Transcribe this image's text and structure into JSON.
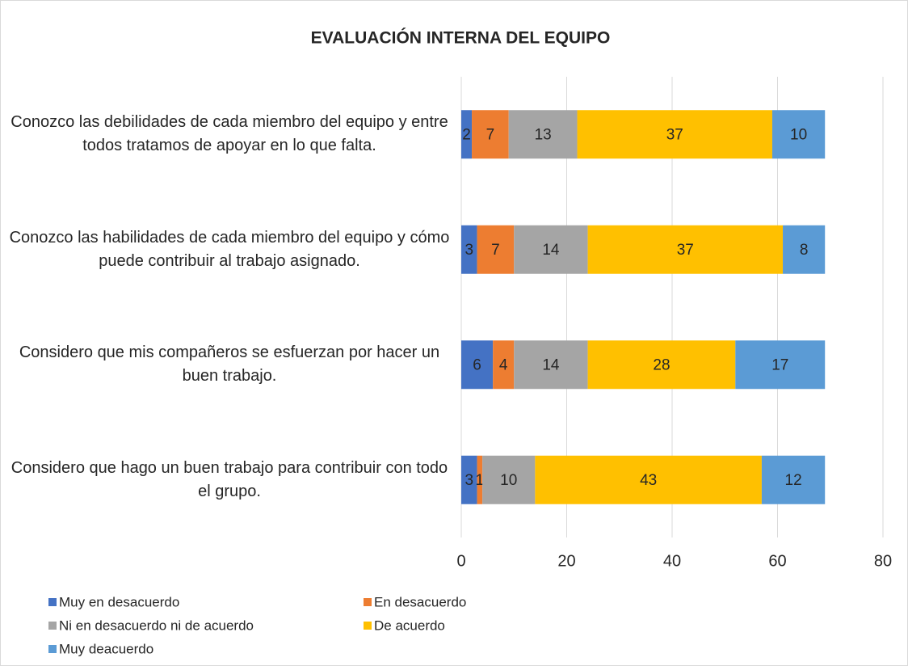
{
  "chart_data": {
    "type": "stacked_barh",
    "title": "EVALUACIÓN INTERNA DEL EQUIPO",
    "categories": [
      "Conozco las debilidades de cada miembro del equipo y entre todos tratamos de apoyar en lo que falta.",
      "Conozco las habilidades de cada miembro del equipo y cómo puede contribuir al trabajo asignado.",
      "Considero que mis compañeros se esfuerzan por hacer un buen trabajo.",
      "Considero que hago un buen trabajo para contribuir con todo el grupo."
    ],
    "series": [
      {
        "name": "Muy en desacuerdo",
        "color": "#4472c4",
        "values": [
          2,
          3,
          6,
          3
        ]
      },
      {
        "name": "En desacuerdo",
        "color": "#ed7d31",
        "values": [
          7,
          7,
          4,
          1
        ]
      },
      {
        "name": "Ni en desacuerdo ni de acuerdo",
        "color": "#a5a5a5",
        "values": [
          13,
          14,
          14,
          10
        ]
      },
      {
        "name": "De acuerdo",
        "color": "#ffc000",
        "values": [
          37,
          37,
          28,
          43
        ]
      },
      {
        "name": "Muy deacuerdo",
        "color": "#5b9bd5",
        "values": [
          10,
          8,
          17,
          12
        ]
      }
    ],
    "xlim": [
      0,
      80
    ],
    "xticks": [
      0,
      20,
      40,
      60,
      80
    ],
    "grid": true,
    "legend": "bottom"
  }
}
